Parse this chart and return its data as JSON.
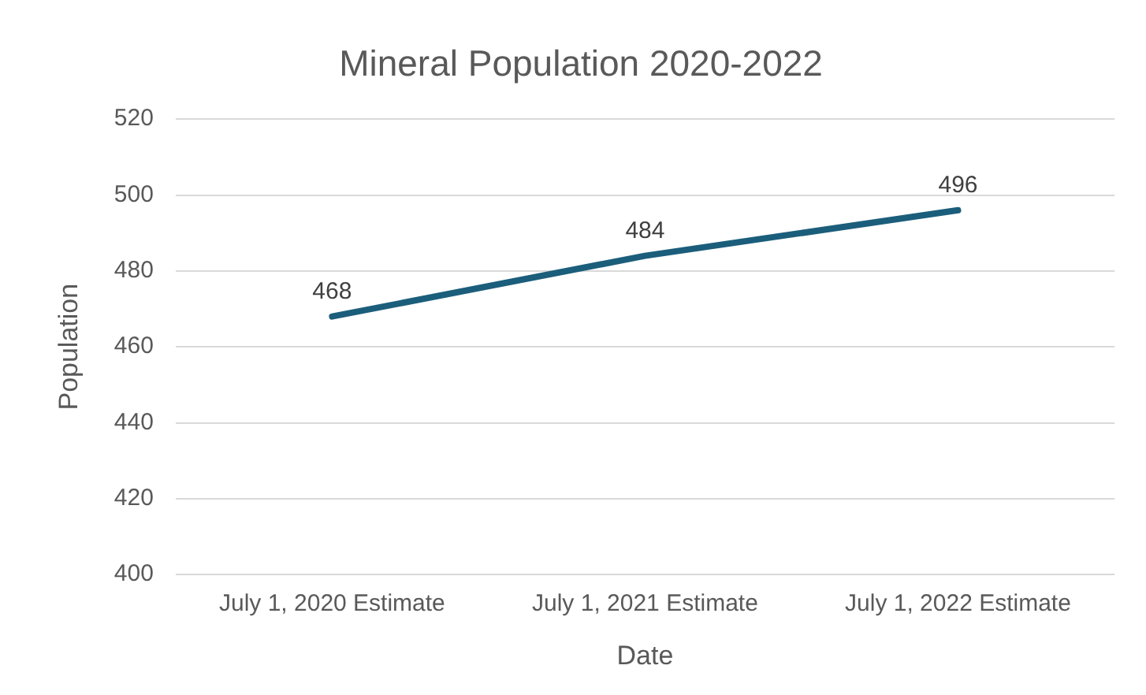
{
  "chart_data": {
    "type": "line",
    "title": "Mineral Population 2020-2022",
    "xlabel": "Date",
    "ylabel": "Population",
    "categories": [
      "July 1, 2020 Estimate",
      "July 1, 2021 Estimate",
      "July 1, 2022 Estimate"
    ],
    "series": [
      {
        "color": "#1b5e7b",
        "values": [
          468,
          484,
          496
        ]
      }
    ],
    "ylim": [
      400,
      520
    ],
    "yticks": [
      400,
      420,
      440,
      460,
      480,
      500,
      520
    ],
    "grid": "y",
    "legend": false,
    "marker": "none",
    "data_labels": true
  }
}
